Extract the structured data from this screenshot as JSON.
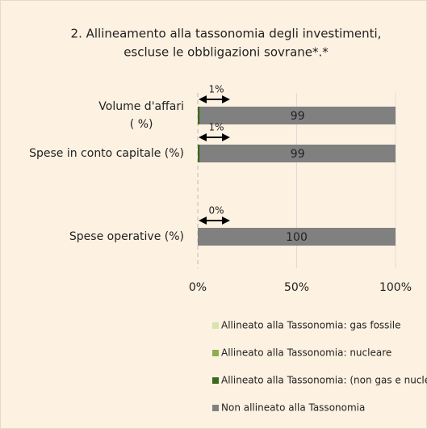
{
  "chart_data": {
    "type": "stacked-bar-horizontal",
    "title": [
      "2. Allineamento alla tassonomia degli investimenti,",
      "escluse le obbligazioni sovrane*.*"
    ],
    "categories": [
      "Volume d'affari\n( %)",
      "Spese in conto capitale (%)",
      "Spese operative (%)"
    ],
    "series": [
      {
        "name": "Allineato alla Tassonomia: gas fossile",
        "color": "#d7e4b0",
        "values": [
          0,
          0,
          0
        ]
      },
      {
        "name": "Allineato alla Tassonomia: nucleare",
        "color": "#8cb04c",
        "values": [
          0,
          0,
          0
        ]
      },
      {
        "name": "Allineato alla Tassonomia: (non gas e nucleare)",
        "color": "#3b6a1f",
        "values": [
          1,
          1,
          0
        ]
      },
      {
        "name": "Non allineato alla Tassonomia",
        "color": "#808080",
        "values": [
          99,
          99,
          100
        ],
        "value_labels": [
          "99",
          "99",
          "100"
        ]
      }
    ],
    "annotations": [
      {
        "value": 1,
        "label": "1%"
      },
      {
        "value": 1,
        "label": "1%"
      },
      {
        "value": 0,
        "label": "0%"
      }
    ],
    "xlim": [
      0,
      100
    ],
    "xticks": [
      {
        "value": 0,
        "label": "0%"
      },
      {
        "value": 50,
        "label": "50%"
      },
      {
        "value": 100,
        "label": "100%"
      }
    ],
    "grid": true
  }
}
